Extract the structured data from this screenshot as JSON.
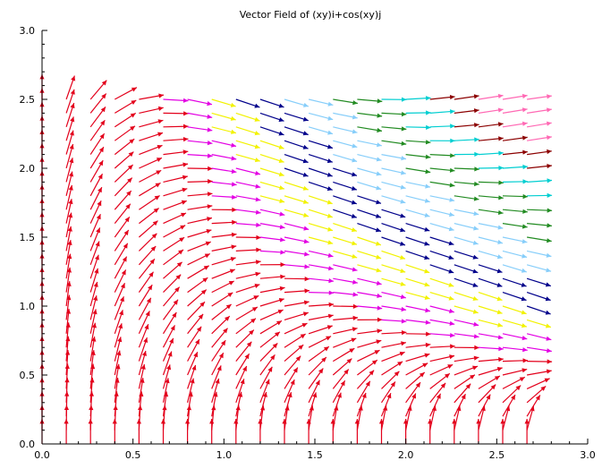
{
  "chart_data": {
    "type": "vector_field",
    "title": "Vector Field of (xy)i+cos(xy)j",
    "field": {
      "i": "x*y",
      "j": "cos(x*y)"
    },
    "xlim": [
      0.0,
      3.0
    ],
    "ylim": [
      0.0,
      3.0
    ],
    "x_ticks": [
      "0.0",
      "0.5",
      "1.0",
      "1.5",
      "2.0",
      "2.5",
      "3.0"
    ],
    "y_ticks": [
      "0.0",
      "0.5",
      "1.0",
      "1.5",
      "2.0",
      "2.5",
      "3.0"
    ],
    "grid": {
      "x0": 0.0,
      "x1": 2.6,
      "dx": 0.1333,
      "y0": 0.0,
      "y1": 2.5,
      "dy": 0.1
    },
    "color_scale": [
      "#e3001b",
      "#e300e3",
      "#f2f200",
      "#00008b",
      "#87cefa",
      "#228b22",
      "#00ced1",
      "#8b0000",
      "#ff69b4"
    ],
    "grid_on": false,
    "legend": "none"
  }
}
